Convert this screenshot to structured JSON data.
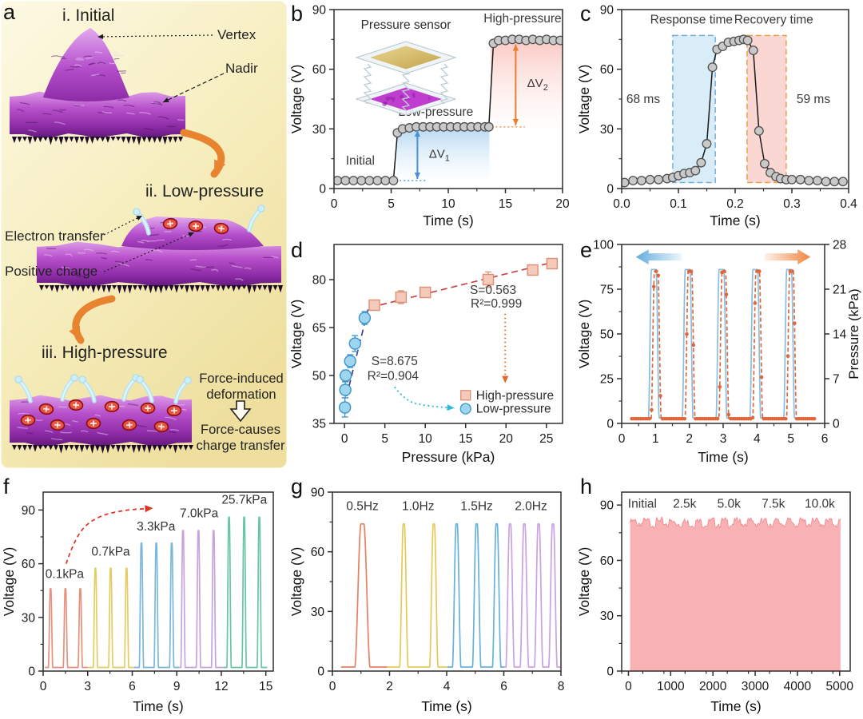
{
  "panels": {
    "a": {
      "letter": "a",
      "stage1_title": "i. Initial",
      "stage2_title": "ii. Low-pressure",
      "stage3_title": "iii. High-pressure",
      "callout_vertex": "Vertex",
      "callout_nadir": "Nadir",
      "callout_electron": "Electron transfer",
      "callout_positive": "Positive charge",
      "force_text_1": "Force-induced deformation",
      "force_text_2": "Force-causes charge transfer",
      "bg_color_top": "#fdf9e4",
      "bg_color_bottom": "#eedf9e",
      "film_color": "#b952cc",
      "charge_color": "#e85545",
      "wisp_color": "#b9e6f4",
      "arrow_color": "#e8832f"
    },
    "b": {
      "letter": "b"
    },
    "c": {
      "letter": "c"
    },
    "d": {
      "letter": "d"
    },
    "e": {
      "letter": "e"
    },
    "f": {
      "letter": "f"
    },
    "g": {
      "letter": "g"
    },
    "h": {
      "letter": "h"
    }
  },
  "chart_data": [
    {
      "panel": "b",
      "type": "line",
      "xlabel": "Time (s)",
      "ylabel": "Voltage (V)",
      "xlim": [
        0,
        20
      ],
      "ylim": [
        0,
        90
      ],
      "xticks": [
        0,
        5,
        10,
        15,
        20
      ],
      "yticks": [
        0,
        30,
        60,
        90
      ],
      "xminor": 2.5,
      "yminor": 15,
      "marker_color": "#c9c9c9",
      "marker_edge": "#4f4f4f",
      "line_color": "#1a1a1a",
      "points": [
        [
          0.3,
          4
        ],
        [
          1.0,
          4
        ],
        [
          1.7,
          4
        ],
        [
          2.4,
          4
        ],
        [
          3.1,
          4
        ],
        [
          3.8,
          4
        ],
        [
          4.5,
          4
        ],
        [
          5.2,
          4
        ],
        [
          5.55,
          28
        ],
        [
          6.0,
          30
        ],
        [
          6.6,
          30.5
        ],
        [
          7.2,
          31
        ],
        [
          7.8,
          31
        ],
        [
          8.4,
          31
        ],
        [
          9.0,
          31
        ],
        [
          9.6,
          31
        ],
        [
          10.2,
          31
        ],
        [
          10.8,
          31
        ],
        [
          11.4,
          31
        ],
        [
          12.0,
          31
        ],
        [
          12.6,
          31
        ],
        [
          13.2,
          31
        ],
        [
          13.55,
          31
        ],
        [
          13.95,
          73
        ],
        [
          14.4,
          74.5
        ],
        [
          15.0,
          74.5
        ],
        [
          15.6,
          75
        ],
        [
          16.2,
          75
        ],
        [
          16.8,
          74.5
        ],
        [
          17.4,
          75
        ],
        [
          18.0,
          74.5
        ],
        [
          18.6,
          75
        ],
        [
          19.2,
          74.5
        ],
        [
          19.8,
          74.5
        ]
      ],
      "regions": [
        {
          "x0": 5.5,
          "x1": 13.6,
          "y0": 4,
          "y1": 30.5,
          "c0": "rgba(125,185,230,0.55)",
          "c1": "rgba(200,230,250,0.04)"
        },
        {
          "x0": 13.7,
          "x1": 19.95,
          "y0": 30.8,
          "y1": 74,
          "c0": "rgba(246,150,140,0.5)",
          "c1": "rgba(252,220,215,0.06)"
        }
      ],
      "hdots": [
        {
          "y": 4,
          "x0": 5.4,
          "x1": 8.2,
          "color": "#4a90d9"
        },
        {
          "y": 31,
          "x0": 13.8,
          "x1": 16.7,
          "color": "#e87e2e"
        }
      ],
      "varrows": [
        {
          "x": 7.3,
          "y0": 4.8,
          "y1": 29.3,
          "color": "#4a90d9",
          "label": "ΔV",
          "sub": "1",
          "lx": 8.3,
          "ly": 15.5
        },
        {
          "x": 15.9,
          "y0": 31.8,
          "y1": 72.5,
          "color": "#e87e2e",
          "label": "ΔV",
          "sub": "2",
          "lx": 16.9,
          "ly": 51
        }
      ],
      "texts": [
        {
          "x": 2.3,
          "y": 12,
          "t": "Initial"
        },
        {
          "x": 8.9,
          "y": 36.5,
          "t": "Low-pressure"
        },
        {
          "x": 16.5,
          "y": 83.5,
          "t": "High-pressure"
        }
      ],
      "inset": {
        "label": "Pressure sensor"
      }
    },
    {
      "panel": "c",
      "type": "line",
      "xlabel": "Time (s)",
      "ylabel": "Voltage (V)",
      "xlim": [
        0,
        0.4
      ],
      "ylim": [
        0,
        90
      ],
      "xticks": [
        0,
        0.1,
        0.2,
        0.3,
        0.4
      ],
      "xticklabels": [
        "0.0",
        "0.1",
        "0.2",
        "0.3",
        "0.4"
      ],
      "yticks": [
        0,
        30,
        60,
        90
      ],
      "xminor": 0.05,
      "yminor": 15,
      "marker_color": "#c9c9c9",
      "marker_edge": "#4f4f4f",
      "line_color": "#1a1a1a",
      "boxes": [
        {
          "x0": 0.09,
          "x1": 0.165,
          "y0": 3,
          "y1": 77,
          "stroke": "#74aede",
          "fill": "rgba(168,214,238,0.45)"
        },
        {
          "x0": 0.221,
          "x1": 0.29,
          "y0": 3,
          "y1": 77,
          "stroke": "#e8a04c",
          "fill": "rgba(247,176,170,0.5)"
        }
      ],
      "response_time_ms": 68,
      "recovery_time_ms": 59,
      "texts": [
        {
          "x": 0.123,
          "y": 83,
          "t": "Response time"
        },
        {
          "x": 0.268,
          "y": 83,
          "t": "Recovery time"
        },
        {
          "x": 0.038,
          "y": 43,
          "t": "68 ms"
        },
        {
          "x": 0.338,
          "y": 43,
          "t": "59 ms"
        }
      ],
      "points": [
        [
          0.005,
          3
        ],
        [
          0.02,
          4
        ],
        [
          0.035,
          4
        ],
        [
          0.05,
          4.5
        ],
        [
          0.065,
          4.5
        ],
        [
          0.08,
          5
        ],
        [
          0.09,
          5.5
        ],
        [
          0.1,
          6.5
        ],
        [
          0.11,
          7.5
        ],
        [
          0.12,
          8
        ],
        [
          0.13,
          9
        ],
        [
          0.14,
          13
        ],
        [
          0.15,
          22.5
        ],
        [
          0.16,
          61
        ],
        [
          0.168,
          70
        ],
        [
          0.178,
          71.5
        ],
        [
          0.188,
          73.5
        ],
        [
          0.198,
          74
        ],
        [
          0.207,
          74.5
        ],
        [
          0.215,
          75
        ],
        [
          0.222,
          74.5
        ],
        [
          0.232,
          69.5
        ],
        [
          0.242,
          29
        ],
        [
          0.252,
          12.5
        ],
        [
          0.262,
          8
        ],
        [
          0.272,
          6
        ],
        [
          0.28,
          5
        ],
        [
          0.29,
          4.5
        ],
        [
          0.3,
          4.5
        ],
        [
          0.315,
          4.5
        ],
        [
          0.33,
          4
        ],
        [
          0.345,
          4
        ],
        [
          0.36,
          3.5
        ],
        [
          0.375,
          3.5
        ],
        [
          0.39,
          3.5
        ]
      ]
    },
    {
      "panel": "d",
      "type": "scatter",
      "xlabel": "Pressure (kPa)",
      "ylabel": "Voltage (V)",
      "xlim": [
        -1.3,
        27
      ],
      "ylim": [
        35,
        91
      ],
      "xticks": [
        0,
        5,
        10,
        15,
        20,
        25
      ],
      "yticks": [
        35,
        50,
        65,
        80
      ],
      "series": [
        {
          "name": "Low-pressure",
          "marker": "circle",
          "fill": "#9fd6ef",
          "edge": "#3d95c8",
          "points": [
            [
              0.05,
              40,
              3
            ],
            [
              0.1,
              45.5,
              2.5
            ],
            [
              0.15,
              50,
              1.7
            ],
            [
              0.7,
              54.5,
              2
            ],
            [
              1.3,
              60,
              2.5
            ],
            [
              2.5,
              68,
              2
            ]
          ],
          "trend": {
            "pts": [
              [
                0.25,
                43.5
              ],
              [
                2.95,
                71
              ]
            ],
            "color": "#39418f"
          },
          "S": "8.675",
          "R2": "0.904"
        },
        {
          "name": "High-pressure",
          "marker": "square",
          "fill": "#f6cabb",
          "edge": "#dd8f77",
          "points": [
            [
              3.7,
              72,
              1.6
            ],
            [
              7,
              74.5,
              2
            ],
            [
              10,
              76,
              1.5
            ],
            [
              17.8,
              80,
              2.4
            ],
            [
              23.3,
              83,
              1
            ],
            [
              25.7,
              85,
              1.4
            ]
          ],
          "trend": {
            "pts": [
              [
                3.2,
                71.3
              ],
              [
                26.4,
                85.8
              ]
            ],
            "color": "#c34343"
          },
          "S": "0.563",
          "R2": "0.999"
        }
      ],
      "texts": [
        {
          "x": 18.4,
          "y": 75.5,
          "t": "S=0.563"
        },
        {
          "x": 18.8,
          "y": 71.3,
          "t": "R²=0.999"
        },
        {
          "x": 6.2,
          "y": 53.2,
          "t": "S=8.675"
        },
        {
          "x": 6.0,
          "y": 48.6,
          "t": "R²=0.904"
        }
      ],
      "legend": {
        "x": 15.0,
        "rows": [
          {
            "marker": "square",
            "fill": "#f6cabb",
            "edge": "#dd8f77",
            "label": "High-pressure",
            "y": 43.8
          },
          {
            "marker": "circle",
            "fill": "#9fd6ef",
            "edge": "#3d95c8",
            "label": "Low-pressure",
            "y": 39.6
          }
        ]
      },
      "arrows": [
        {
          "kind": "vdot",
          "x": 19.9,
          "y0": 69.3,
          "y1": 47.6,
          "color": "#e06a28"
        },
        {
          "kind": "curve",
          "pts": [
            [
              6.2,
              46.4
            ],
            [
              7.6,
              41.8
            ],
            [
              10.4,
              40.4
            ],
            [
              13.6,
              39.8
            ]
          ],
          "color": "#2fb9d8",
          "dash": "2,3.5"
        }
      ]
    },
    {
      "panel": "e",
      "type": "pulse",
      "xlabel": "Time (s)",
      "ylabel": "Voltage (V)",
      "y2label": "Pressure (kPa)",
      "xlim": [
        0,
        6
      ],
      "ylim": [
        0,
        100
      ],
      "y2lim": [
        0,
        28
      ],
      "xticks": [
        0,
        1,
        2,
        3,
        4,
        5,
        6
      ],
      "yticks": [
        0,
        25,
        50,
        75,
        100
      ],
      "y2ticks": [
        0,
        7,
        14,
        21,
        28
      ],
      "xminor": 0.5,
      "yminor": 12.5,
      "voltage": {
        "color": "#85bfe3",
        "centers": [
          0.95,
          1.95,
          2.95,
          3.95,
          4.95
        ],
        "w": 0.07,
        "r": 0.09,
        "height": 86,
        "base": 3,
        "span": [
          0.3,
          5.72
        ]
      },
      "pressure": {
        "color": "#e0663c",
        "centers": [
          1.02,
          2.02,
          3.02,
          4.02,
          5.02
        ],
        "w": 0.05,
        "r": 0.1,
        "height": 85,
        "base": 2.6,
        "span": [
          0.3,
          5.72
        ]
      },
      "dir_arrows": [
        {
          "x0": 1.78,
          "x1": 0.42,
          "y": 93,
          "c": "#5aa7dc"
        },
        {
          "x0": 4.22,
          "x1": 5.58,
          "y": 93,
          "c": "#ef7f35"
        }
      ]
    },
    {
      "panel": "f",
      "type": "pulse_groups",
      "xlabel": "Time (s)",
      "ylabel": "Voltage (V)",
      "xlim": [
        0,
        15.5
      ],
      "ylim": [
        0,
        100
      ],
      "xticks": [
        0,
        3,
        6,
        9,
        12,
        15
      ],
      "yticks": [
        0,
        30,
        60,
        90
      ],
      "xminor": 1.5,
      "yminor": 15,
      "base": 2,
      "groups": [
        {
          "color": "#e8907c",
          "height": 46,
          "centers": [
            0.5,
            1.5,
            2.5
          ],
          "span": [
            0.12,
            3.02
          ],
          "label": "0.1kPa",
          "lx": 1.45,
          "ly": 52
        },
        {
          "color": "#e3cd62",
          "height": 57.5,
          "centers": [
            3.52,
            4.55,
            5.62
          ],
          "span": [
            3.02,
            6.12
          ],
          "label": "0.7kPa",
          "lx": 4.55,
          "ly": 64.5
        },
        {
          "color": "#79b7dc",
          "height": 71.5,
          "centers": [
            6.62,
            7.62,
            8.66
          ],
          "span": [
            6.12,
            9.17
          ],
          "label": "3.3kPa",
          "lx": 7.6,
          "ly": 78.5
        },
        {
          "color": "#c6a3de",
          "height": 78.5,
          "centers": [
            9.42,
            10.46,
            11.48
          ],
          "span": [
            9.17,
            12.12
          ],
          "label": "7.0kPa",
          "lx": 10.5,
          "ly": 86
        },
        {
          "color": "#67c5a8",
          "height": 86,
          "centers": [
            12.52,
            13.54,
            14.56
          ],
          "span": [
            12.12,
            15.1
          ],
          "label": "25.7kPa",
          "lx": 13.55,
          "ly": 93.5
        }
      ],
      "arrow": {
        "pts": [
          [
            1.55,
            60
          ],
          [
            2.2,
            76
          ],
          [
            3.5,
            86
          ],
          [
            5.4,
            90
          ],
          [
            7.4,
            91
          ]
        ],
        "color": "#e03123",
        "dash": "5,4"
      }
    },
    {
      "panel": "g",
      "type": "pulse_groups",
      "xlabel": "Time (s)",
      "ylabel": "Voltage (V)",
      "xlim": [
        0,
        8
      ],
      "ylim": [
        0,
        90
      ],
      "xticks": [
        0,
        2,
        4,
        6,
        8
      ],
      "yticks": [
        0,
        30,
        60,
        90
      ],
      "xminor": 1,
      "yminor": 15,
      "base": 2,
      "groups": [
        {
          "color": "#e87f63",
          "height": 74,
          "centers": [
            1.05
          ],
          "w": 0.05,
          "r": 0.22,
          "span": [
            0.3,
            1.92
          ],
          "label": "0.5Hz",
          "lx": 1.05,
          "ly": 81
        },
        {
          "color": "#e4cb57",
          "height": 74,
          "centers": [
            2.5,
            3.55
          ],
          "span": [
            1.92,
            4.02
          ],
          "label": "1.0Hz",
          "lx": 3.0,
          "ly": 81
        },
        {
          "color": "#68b1d8",
          "height": 74,
          "centers": [
            4.35,
            5.05,
            5.75
          ],
          "span": [
            4.02,
            6.02
          ],
          "label": "1.5Hz",
          "lx": 5.05,
          "ly": 81
        },
        {
          "color": "#c9a2e1",
          "height": 74,
          "centers": [
            6.22,
            6.72,
            7.22,
            7.72
          ],
          "span": [
            6.02,
            7.98
          ],
          "label": "2.0Hz",
          "lx": 6.95,
          "ly": 81
        }
      ]
    },
    {
      "panel": "h",
      "type": "band",
      "xlabel": "Time (s)",
      "ylabel": "Voltage (V)",
      "xlim": [
        -160,
        5250
      ],
      "ylim": [
        0,
        97
      ],
      "xticks": [
        0,
        1000,
        2000,
        3000,
        4000,
        5000
      ],
      "yticks": [
        0,
        30,
        60,
        90
      ],
      "xminor": 500,
      "yminor": 15,
      "band": {
        "x0": 40,
        "x1": 5020,
        "top": 82,
        "noise": 1.6,
        "fill": "#f9b2b4",
        "edge": "#f19098"
      },
      "texts": [
        {
          "x": 330,
          "y": 88.5,
          "t": "Initial"
        },
        {
          "x": 1330,
          "y": 88.5,
          "t": "2.5k"
        },
        {
          "x": 2380,
          "y": 88.5,
          "t": "5.0k"
        },
        {
          "x": 3430,
          "y": 88.5,
          "t": "7.5k"
        },
        {
          "x": 4530,
          "y": 88.5,
          "t": "10.0k"
        }
      ]
    }
  ]
}
